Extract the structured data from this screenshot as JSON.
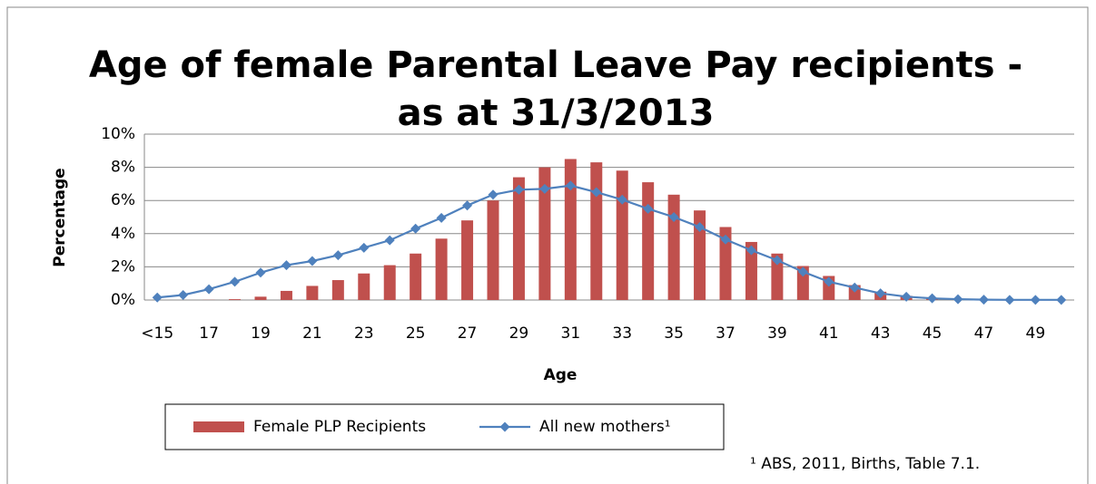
{
  "chart_data": {
    "type": "bar-line",
    "title": [
      "Age of female Parental Leave Pay recipients -",
      "as at 31/3/2013"
    ],
    "y_label": "Percentage",
    "x_label": "Age",
    "footnote": "¹ ABS, 2011, Births, Table 7.1.",
    "categories": [
      "<15",
      null,
      "17",
      null,
      "19",
      null,
      "21",
      null,
      "23",
      null,
      "25",
      null,
      "27",
      null,
      "29",
      null,
      "31",
      null,
      "33",
      null,
      "35",
      null,
      "37",
      null,
      "39",
      null,
      "41",
      null,
      "43",
      null,
      "45",
      null,
      "47",
      null,
      "49",
      null
    ],
    "series": [
      {
        "name": "Female PLP Recipients",
        "type": "bar",
        "color": "#c0504d",
        "values": [
          0,
          0,
          0.01,
          0.05,
          0.2,
          0.55,
          0.85,
          1.2,
          1.6,
          2.1,
          2.8,
          3.7,
          4.8,
          6.0,
          7.4,
          8.0,
          8.5,
          8.3,
          7.8,
          7.1,
          6.35,
          5.4,
          4.4,
          3.5,
          2.8,
          2.05,
          1.45,
          0.9,
          0.5,
          0.25,
          0.1,
          0.05,
          0.02,
          0.01,
          0.005,
          0
        ]
      },
      {
        "name": "All new mothers¹",
        "type": "line",
        "color": "#4f81bd",
        "values": [
          0.15,
          0.3,
          0.65,
          1.1,
          1.65,
          2.1,
          2.35,
          2.7,
          3.15,
          3.6,
          4.3,
          4.95,
          5.7,
          6.35,
          6.65,
          6.7,
          6.9,
          6.5,
          6.05,
          5.5,
          5.0,
          4.4,
          3.65,
          3.0,
          2.4,
          1.7,
          1.1,
          0.75,
          0.4,
          0.2,
          0.1,
          0.05,
          0.02,
          0.01,
          0.01,
          0.01
        ]
      }
    ],
    "ylim": [
      0,
      10
    ],
    "yticks": [
      {
        "value": 0,
        "label": "0%"
      },
      {
        "value": 2,
        "label": "2%"
      },
      {
        "value": 4,
        "label": "4%"
      },
      {
        "value": 6,
        "label": "6%"
      },
      {
        "value": 8,
        "label": "8%"
      },
      {
        "value": 10,
        "label": "10%"
      }
    ],
    "grid": true,
    "legend": "bottom"
  }
}
